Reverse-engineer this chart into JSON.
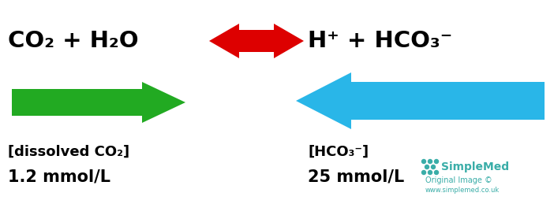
{
  "bg_color": "#ffffff",
  "fig_width": 7.02,
  "fig_height": 2.73,
  "dpi": 100,
  "equation_left": "CO₂ + H₂O",
  "equation_right": "H⁺ + HCO₃⁻",
  "left_label_line1": "[dissolved CO₂]",
  "left_label_line2": "1.2 mmol/L",
  "right_label_line1": "[HCO₃⁻]",
  "right_label_line2": "25 mmol/L",
  "simplemed_text": "SimpleMed",
  "original_text": "Original Image ©",
  "website_text": "www.simplemed.co.uk",
  "simplemed_color": "#3aada8",
  "red_arrow_color": "#dd0000",
  "green_arrow_color": "#22aa22",
  "blue_arrow_color": "#29b6e8",
  "text_color": "#000000",
  "eq_fontsize": 21,
  "label_fontsize": 13,
  "label_value_fontsize": 15,
  "simplemed_fontsize": 10,
  "original_fontsize": 7,
  "website_fontsize": 6
}
